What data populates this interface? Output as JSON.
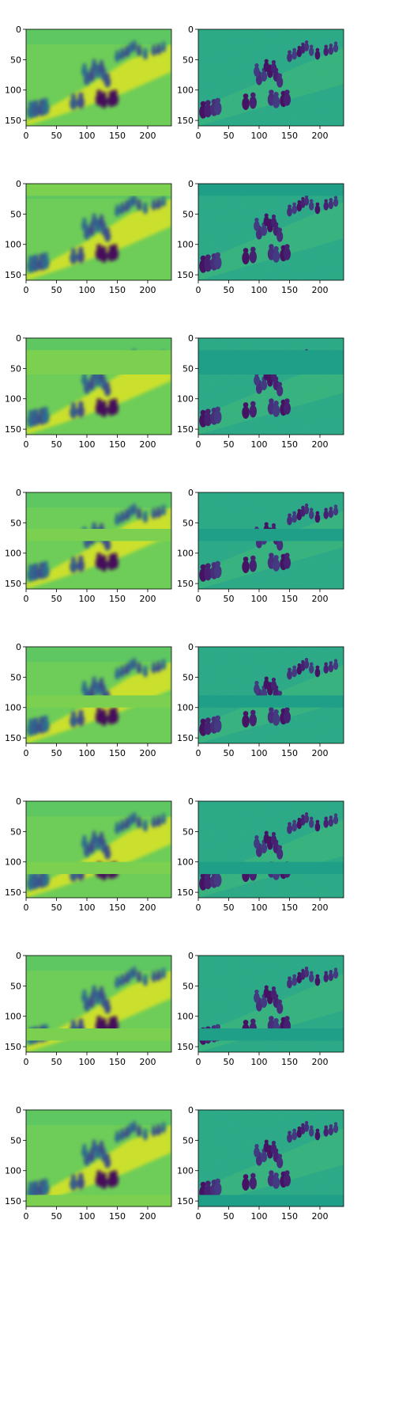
{
  "chart_data": {
    "type": "heatmap",
    "colormap": "viridis",
    "layout": {
      "rows": 8,
      "cols": 2
    },
    "x_ticks": [
      0,
      50,
      100,
      150,
      200
    ],
    "y_ticks": [
      0,
      50,
      100,
      150
    ],
    "xlim": [
      0,
      239
    ],
    "ylim": [
      159,
      0
    ],
    "columns": [
      {
        "content": "blurred reconstruction of outdoor scene with group of walking people",
        "background_level": 0.78
      },
      {
        "content": "detailed feature map of the same scene; people appear dark",
        "background_level": 0.55
      }
    ],
    "rows": [
      {
        "masked_band": [
          0,
          1
        ]
      },
      {
        "masked_band": [
          0,
          20
        ]
      },
      {
        "masked_band": [
          20,
          60
        ]
      },
      {
        "masked_band": [
          60,
          80
        ]
      },
      {
        "masked_band": [
          80,
          100
        ]
      },
      {
        "masked_band": [
          100,
          120
        ]
      },
      {
        "masked_band": [
          120,
          140
        ]
      },
      {
        "masked_band": [
          140,
          159
        ]
      }
    ]
  }
}
